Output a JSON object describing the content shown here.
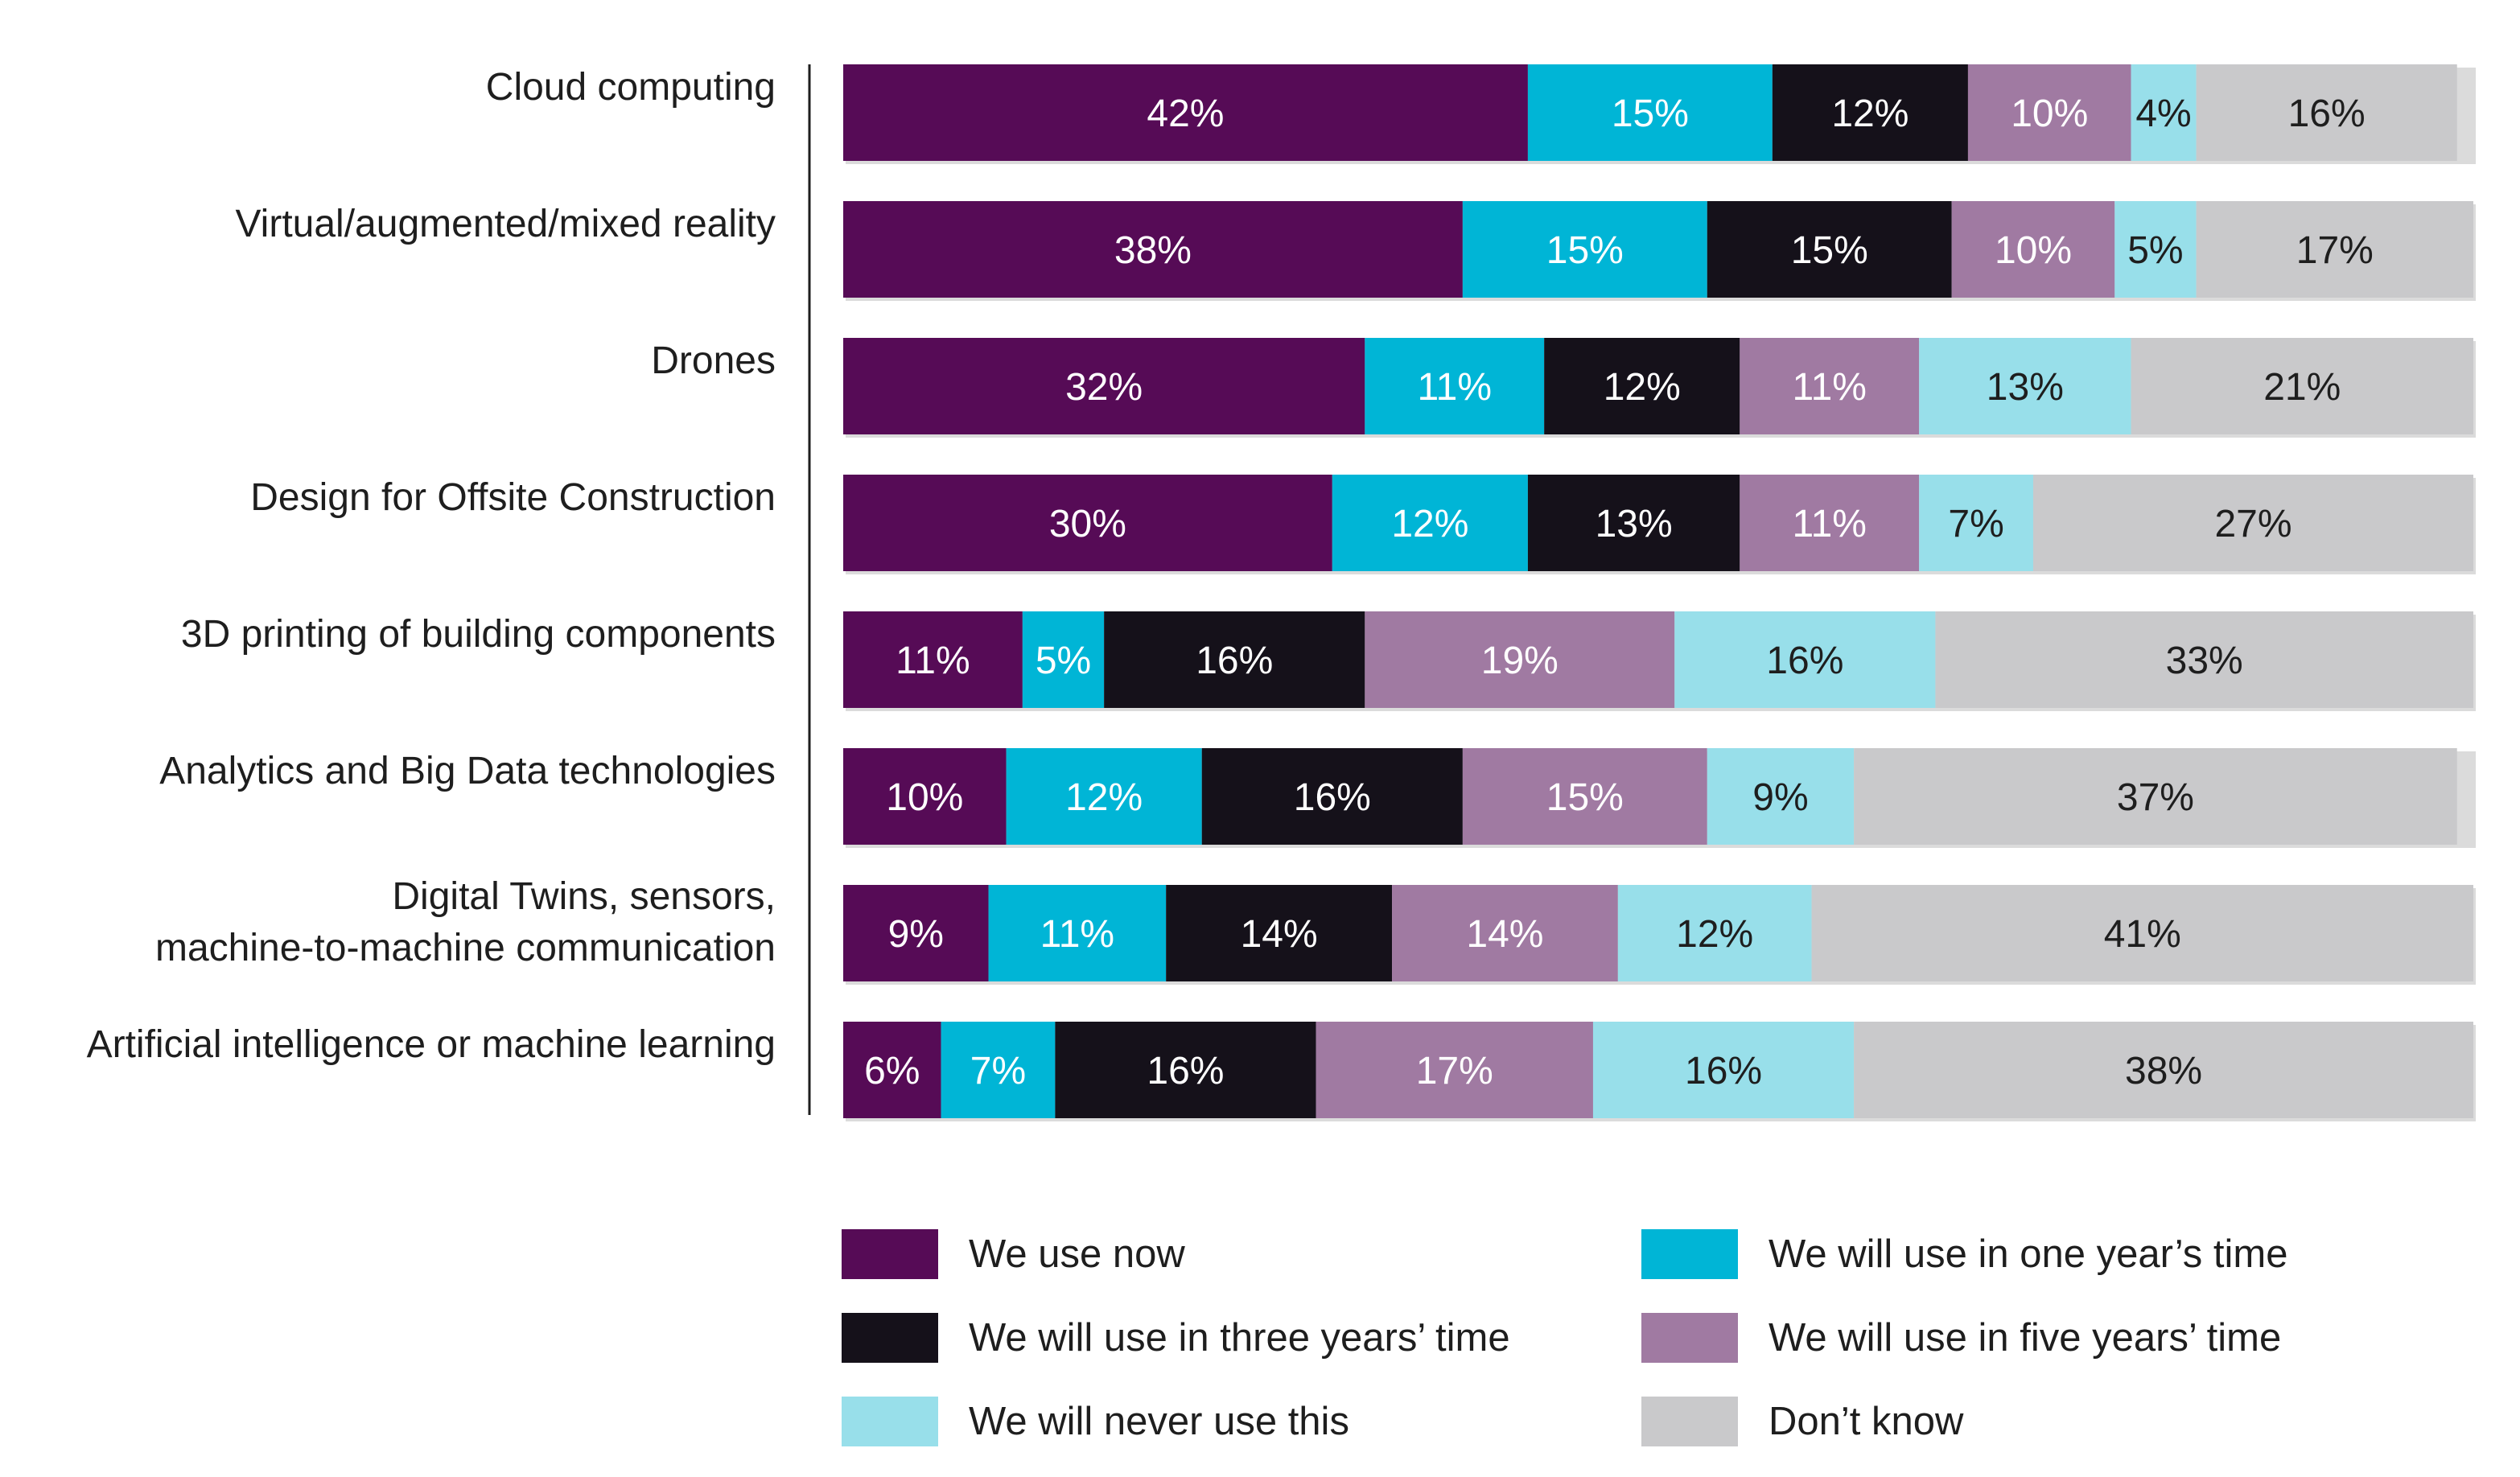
{
  "chart_data": {
    "type": "bar",
    "orientation": "horizontal",
    "stacked": true,
    "value_format": "percent",
    "title": "",
    "xlabel": "",
    "ylabel": "",
    "xlim": [
      0,
      100
    ],
    "grid": false,
    "legend_position": "bottom",
    "categories": [
      [
        "Cloud computing"
      ],
      [
        "Virtual/augmented/mixed reality"
      ],
      [
        "Drones"
      ],
      [
        "Design for Offsite Construction"
      ],
      [
        "3D printing of building components"
      ],
      [
        "Analytics and Big Data technologies"
      ],
      [
        "Digital Twins, sensors,",
        "machine-to-machine communication"
      ],
      [
        "Artificial intelligence or machine learning"
      ]
    ],
    "series": [
      {
        "name": "We use now",
        "color": "#560b56",
        "label_color": "#ffffff",
        "values": [
          42,
          38,
          32,
          30,
          11,
          10,
          9,
          6
        ]
      },
      {
        "name": "We will use in one year’s time",
        "color": "#00b5d6",
        "label_color": "#ffffff",
        "values": [
          15,
          15,
          11,
          12,
          5,
          12,
          11,
          7
        ]
      },
      {
        "name": "We will use in three years’ time",
        "color": "#15111a",
        "label_color": "#ffffff",
        "values": [
          12,
          15,
          12,
          13,
          16,
          16,
          14,
          16
        ]
      },
      {
        "name": "We will use in five years’ time",
        "color": "#a07aa2",
        "label_color": "#ffffff",
        "values": [
          10,
          10,
          11,
          11,
          19,
          15,
          14,
          17
        ]
      },
      {
        "name": "We will never use this",
        "color": "#98dfea",
        "label_color": "#1e1e1e",
        "values": [
          4,
          5,
          13,
          7,
          16,
          9,
          12,
          16
        ]
      },
      {
        "name": "Don’t know",
        "color": "#c9c9cb",
        "label_color": "#1e1e1e",
        "values": [
          16,
          17,
          21,
          27,
          33,
          37,
          41,
          38
        ]
      }
    ]
  },
  "legend": {
    "items": [
      {
        "label": "We use now",
        "color": "#560b56"
      },
      {
        "label": "We will use in one year’s time",
        "color": "#00b5d6"
      },
      {
        "label": "We will use in three years’ time",
        "color": "#15111a"
      },
      {
        "label": "We will use in five years’ time",
        "color": "#a07aa2"
      },
      {
        "label": "We will never use this",
        "color": "#98dfea"
      },
      {
        "label": "Don’t know",
        "color": "#c9c9cb"
      }
    ]
  }
}
